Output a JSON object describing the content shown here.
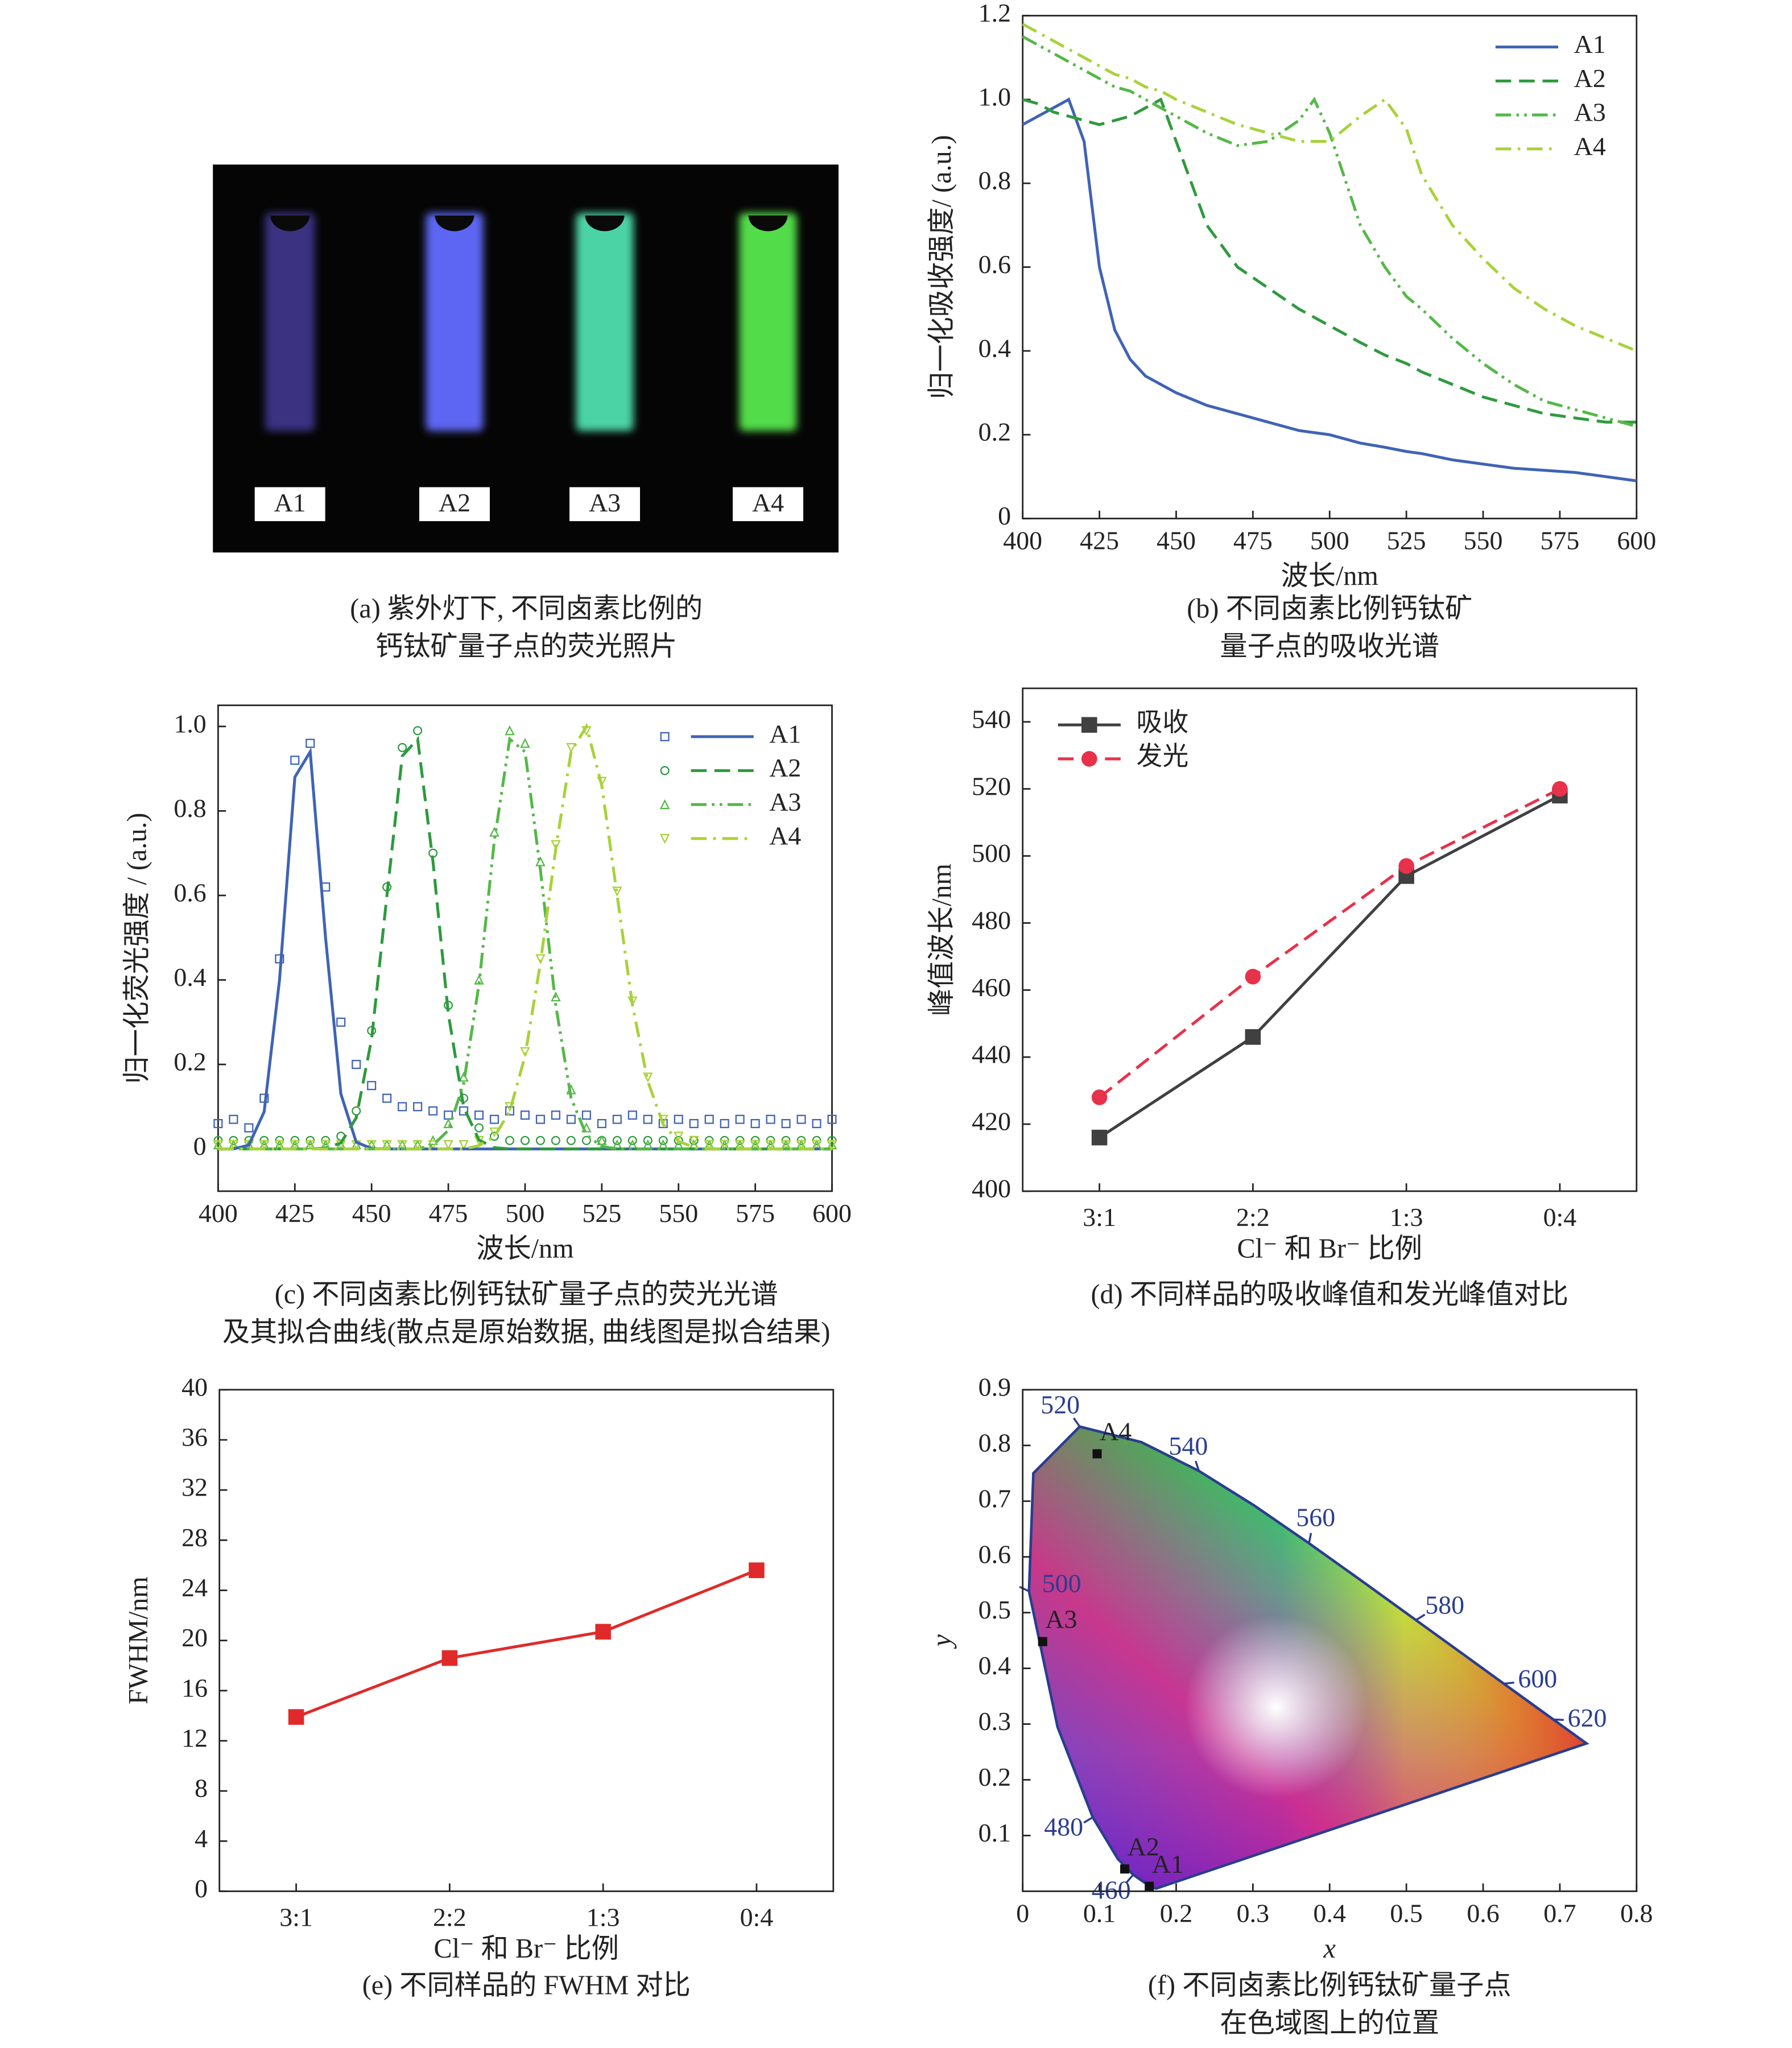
{
  "chart_data": [
    {
      "type": "photo",
      "labels": [
        "A1",
        "A2",
        "A3",
        "A4"
      ],
      "colors": [
        "#3a3382",
        "#5d66f2",
        "#4cd3a6",
        "#52dc4a"
      ],
      "caption": [
        "(a) 紫外灯下, 不同卤素比例的",
        "钙钛矿量子点的荧光照片"
      ]
    },
    {
      "type": "line",
      "x_label": "波长/nm",
      "y_label": "归一化吸收强度/ (a.u.)",
      "x": [
        400,
        405,
        410,
        415,
        420,
        425,
        430,
        435,
        440,
        445,
        450,
        460,
        470,
        480,
        490,
        495,
        500,
        510,
        518,
        525,
        530,
        540,
        550,
        560,
        570,
        580,
        590,
        600
      ],
      "series": [
        {
          "name": "A1",
          "color": "#3f63b5",
          "dash": "solid",
          "values": [
            0.94,
            0.96,
            0.98,
            1.0,
            0.9,
            0.6,
            0.45,
            0.38,
            0.34,
            0.32,
            0.3,
            0.27,
            0.25,
            0.23,
            0.21,
            0.205,
            0.2,
            0.18,
            0.17,
            0.16,
            0.155,
            0.14,
            0.13,
            0.12,
            0.115,
            0.11,
            0.1,
            0.09
          ]
        },
        {
          "name": "A2",
          "color": "#2e9a3e",
          "dash": "dash",
          "values": [
            1.0,
            0.99,
            0.97,
            0.96,
            0.95,
            0.94,
            0.95,
            0.96,
            0.98,
            1.0,
            0.9,
            0.7,
            0.6,
            0.55,
            0.5,
            0.48,
            0.46,
            0.42,
            0.39,
            0.37,
            0.35,
            0.32,
            0.29,
            0.27,
            0.25,
            0.24,
            0.23,
            0.23
          ]
        },
        {
          "name": "A3",
          "color": "#55b848",
          "dash": "dashdotdot",
          "values": [
            1.15,
            1.13,
            1.11,
            1.09,
            1.07,
            1.05,
            1.03,
            1.02,
            1.0,
            0.98,
            0.96,
            0.92,
            0.89,
            0.9,
            0.95,
            1.0,
            0.92,
            0.7,
            0.6,
            0.53,
            0.5,
            0.43,
            0.37,
            0.32,
            0.28,
            0.26,
            0.24,
            0.22
          ]
        },
        {
          "name": "A4",
          "color": "#a8d23a",
          "dash": "dashdot",
          "values": [
            1.18,
            1.16,
            1.14,
            1.12,
            1.1,
            1.08,
            1.06,
            1.05,
            1.03,
            1.02,
            1.0,
            0.97,
            0.94,
            0.92,
            0.9,
            0.9,
            0.9,
            0.96,
            1.0,
            0.93,
            0.82,
            0.7,
            0.62,
            0.55,
            0.5,
            0.46,
            0.43,
            0.4
          ]
        }
      ],
      "xlim": [
        400,
        600
      ],
      "ylim": [
        0,
        1.2
      ],
      "xticks": [
        400,
        425,
        450,
        475,
        500,
        525,
        550,
        575,
        600
      ],
      "yticks": [
        0,
        0.2,
        0.4,
        0.6,
        0.8,
        {
          "value": 1,
          "label": "1.0"
        },
        1.2
      ],
      "legend": "upper right",
      "caption": [
        "(b) 不同卤素比例钙钛矿",
        "量子点的吸收光谱"
      ]
    },
    {
      "type": "line",
      "x_label": "波长/nm",
      "y_label": "归一化荧光强度 / (a.u.)",
      "x": [
        400,
        405,
        410,
        415,
        420,
        425,
        430,
        435,
        440,
        445,
        450,
        455,
        460,
        465,
        470,
        475,
        480,
        485,
        490,
        495,
        500,
        505,
        510,
        515,
        520,
        525,
        530,
        535,
        540,
        545,
        550,
        555,
        560,
        565,
        570,
        575,
        580,
        585,
        590,
        595,
        600
      ],
      "series": [
        {
          "name": "A1",
          "color": "#3f63b5",
          "dash": "solid",
          "marker": "square",
          "values": [
            0,
            0,
            0.009,
            0.088,
            0.4,
            0.88,
            0.94,
            0.5,
            0.13,
            0.016,
            0.001,
            0,
            0,
            0,
            0,
            0,
            0,
            0,
            0,
            0,
            0,
            0,
            0,
            0,
            0,
            0,
            0,
            0,
            0,
            0,
            0,
            0,
            0,
            0,
            0,
            0,
            0,
            0,
            0,
            0,
            0
          ],
          "raw": [
            0.06,
            0.07,
            0.05,
            0.12,
            0.45,
            0.92,
            0.96,
            0.62,
            0.3,
            0.2,
            0.15,
            0.12,
            0.1,
            0.1,
            0.09,
            0.08,
            0.09,
            0.08,
            0.07,
            0.09,
            0.08,
            0.07,
            0.08,
            0.07,
            0.08,
            0.06,
            0.07,
            0.08,
            0.07,
            0.06,
            0.07,
            0.06,
            0.07,
            0.06,
            0.07,
            0.06,
            0.07,
            0.06,
            0.07,
            0.06,
            0.07
          ]
        },
        {
          "name": "A2",
          "color": "#2e9a3e",
          "dash": "dash",
          "marker": "circle",
          "values": [
            0,
            0,
            0,
            0,
            0,
            0,
            0,
            0.002,
            0.014,
            0.074,
            0.26,
            0.6,
            0.93,
            0.97,
            0.68,
            0.32,
            0.099,
            0.021,
            0.003,
            0,
            0,
            0,
            0,
            0,
            0,
            0,
            0,
            0,
            0,
            0,
            0,
            0,
            0,
            0,
            0,
            0,
            0,
            0,
            0,
            0,
            0
          ],
          "raw": [
            0.02,
            0.02,
            0.02,
            0.02,
            0.02,
            0.02,
            0.02,
            0.02,
            0.03,
            0.09,
            0.28,
            0.62,
            0.95,
            0.99,
            0.7,
            0.34,
            0.12,
            0.05,
            0.03,
            0.02,
            0.02,
            0.02,
            0.02,
            0.02,
            0.02,
            0.02,
            0.02,
            0.02,
            0.02,
            0.02,
            0.02,
            0.02,
            0.02,
            0.02,
            0.02,
            0.02,
            0.02,
            0.02,
            0.02,
            0.02,
            0.02
          ]
        },
        {
          "name": "A3",
          "color": "#55b848",
          "dash": "dashdotdot",
          "marker": "triangle",
          "values": [
            0,
            0,
            0,
            0,
            0,
            0,
            0,
            0,
            0,
            0,
            0,
            0,
            0,
            0,
            0.009,
            0.044,
            0.155,
            0.39,
            0.73,
            0.97,
            0.94,
            0.66,
            0.34,
            0.12,
            0.033,
            0.006,
            0,
            0,
            0,
            0,
            0,
            0,
            0,
            0,
            0,
            0,
            0,
            0,
            0,
            0,
            0
          ],
          "raw": [
            0.01,
            0.01,
            0.01,
            0.01,
            0.01,
            0.01,
            0.01,
            0.01,
            0.01,
            0.01,
            0.01,
            0.01,
            0.01,
            0.01,
            0.02,
            0.06,
            0.17,
            0.4,
            0.75,
            0.99,
            0.96,
            0.68,
            0.36,
            0.14,
            0.05,
            0.02,
            0.01,
            0.01,
            0.01,
            0.01,
            0.01,
            0.01,
            0.01,
            0.01,
            0.01,
            0.01,
            0.01,
            0.01,
            0.01,
            0.01,
            0.01
          ]
        },
        {
          "name": "A4",
          "color": "#a8d23a",
          "dash": "dashdot",
          "marker": "triangle-down",
          "values": [
            0,
            0,
            0,
            0,
            0,
            0,
            0,
            0,
            0,
            0,
            0,
            0,
            0,
            0,
            0,
            0,
            0,
            0.008,
            0.029,
            0.089,
            0.22,
            0.44,
            0.71,
            0.94,
            1.0,
            0.86,
            0.6,
            0.34,
            0.16,
            0.058,
            0.018,
            0.004,
            0,
            0,
            0,
            0,
            0,
            0,
            0,
            0,
            0
          ],
          "raw": [
            0.01,
            0.01,
            0.01,
            0.01,
            0.01,
            0.01,
            0.01,
            0.01,
            0.01,
            0.01,
            0.01,
            0.01,
            0.01,
            0.01,
            0.01,
            0.01,
            0.01,
            0.02,
            0.04,
            0.1,
            0.23,
            0.45,
            0.72,
            0.95,
            0.99,
            0.87,
            0.61,
            0.35,
            0.17,
            0.07,
            0.03,
            0.02,
            0.01,
            0.01,
            0.01,
            0.01,
            0.01,
            0.01,
            0.01,
            0.01,
            0.01
          ]
        }
      ],
      "xlim": [
        400,
        600
      ],
      "ylim": [
        -0.1,
        1.05
      ],
      "xticks": [
        400,
        425,
        450,
        475,
        500,
        525,
        550,
        575,
        600
      ],
      "yticks": [
        0,
        0.2,
        0.4,
        0.6,
        0.8,
        {
          "value": 1,
          "label": "1.0"
        }
      ],
      "legend": "upper right",
      "caption": [
        "(c) 不同卤素比例钙钛矿量子点的荧光光谱",
        "及其拟合曲线(散点是原始数据, 曲线图是拟合结果)"
      ]
    },
    {
      "type": "line",
      "x_label": "Cl⁻ 和 Br⁻ 比例",
      "y_label": "峰值波长/nm",
      "categories": [
        "3:1",
        "2:2",
        "1:3",
        "0:4"
      ],
      "series": [
        {
          "name": "吸收",
          "color": "#404040",
          "dash": "solid",
          "marker": "square",
          "values": [
            416,
            446,
            494,
            518
          ]
        },
        {
          "name": "发光",
          "color": "#e8314a",
          "dash": "dash",
          "marker": "circle",
          "values": [
            428,
            464,
            497,
            520
          ]
        }
      ],
      "ylim": [
        400,
        550
      ],
      "yticks": [
        400,
        420,
        440,
        460,
        480,
        500,
        520,
        540
      ],
      "legend": "upper left",
      "caption": [
        "(d) 不同样品的吸收峰值和发光峰值对比"
      ]
    },
    {
      "type": "line",
      "x_label": "Cl⁻ 和 Br⁻ 比例",
      "y_label": "FWHM/nm",
      "categories": [
        "3:1",
        "2:2",
        "1:3",
        "0:4"
      ],
      "values": [
        13.9,
        18.6,
        20.7,
        25.6
      ],
      "color": "#e02a2a",
      "marker": "square",
      "ylim": [
        0,
        40
      ],
      "yticks": [
        0,
        4,
        8,
        12,
        16,
        20,
        24,
        28,
        32,
        36,
        40
      ],
      "caption": [
        "(e) 不同样品的 FWHM 对比"
      ]
    },
    {
      "type": "cie",
      "x_label": "x",
      "y_label": "y",
      "locus": {
        "x": [
          0.1741,
          0.1689,
          0.1644,
          0.1566,
          0.144,
          0.1241,
          0.0913,
          0.0454,
          0.0082,
          0.0139,
          0.0743,
          0.1547,
          0.2296,
          0.3016,
          0.3731,
          0.4441,
          0.5125,
          0.5752,
          0.627,
          0.6915,
          0.7347
        ],
        "y": [
          0.005,
          0.0069,
          0.0109,
          0.0177,
          0.0297,
          0.0578,
          0.1327,
          0.295,
          0.5384,
          0.7502,
          0.8338,
          0.8059,
          0.7543,
          0.6923,
          0.6245,
          0.5547,
          0.4866,
          0.4242,
          0.3725,
          0.3083,
          0.2653
        ],
        "wavelengths": [
          null,
          null,
          null,
          null,
          460,
          null,
          480,
          null,
          500,
          null,
          520,
          null,
          540,
          null,
          560,
          null,
          580,
          null,
          600,
          620,
          null
        ],
        "color": "#2a3d8f"
      },
      "points": {
        "names": [
          "A1",
          "A2",
          "A3",
          "A4"
        ],
        "x": [
          0.165,
          0.133,
          0.026,
          0.097
        ],
        "y": [
          0.009,
          0.04,
          0.448,
          0.785
        ],
        "color": "#111111"
      },
      "xlim": [
        0,
        0.8
      ],
      "ylim": [
        0,
        0.9
      ],
      "xticks": [
        0,
        0.1,
        0.2,
        0.3,
        0.4,
        0.5,
        0.6,
        0.7,
        0.8
      ],
      "yticks": [
        0.1,
        0.2,
        0.3,
        0.4,
        0.5,
        0.6,
        0.7,
        0.8,
        0.9
      ],
      "caption": [
        "(f) 不同卤素比例钙钛矿量子点",
        "在色域图上的位置"
      ]
    }
  ]
}
